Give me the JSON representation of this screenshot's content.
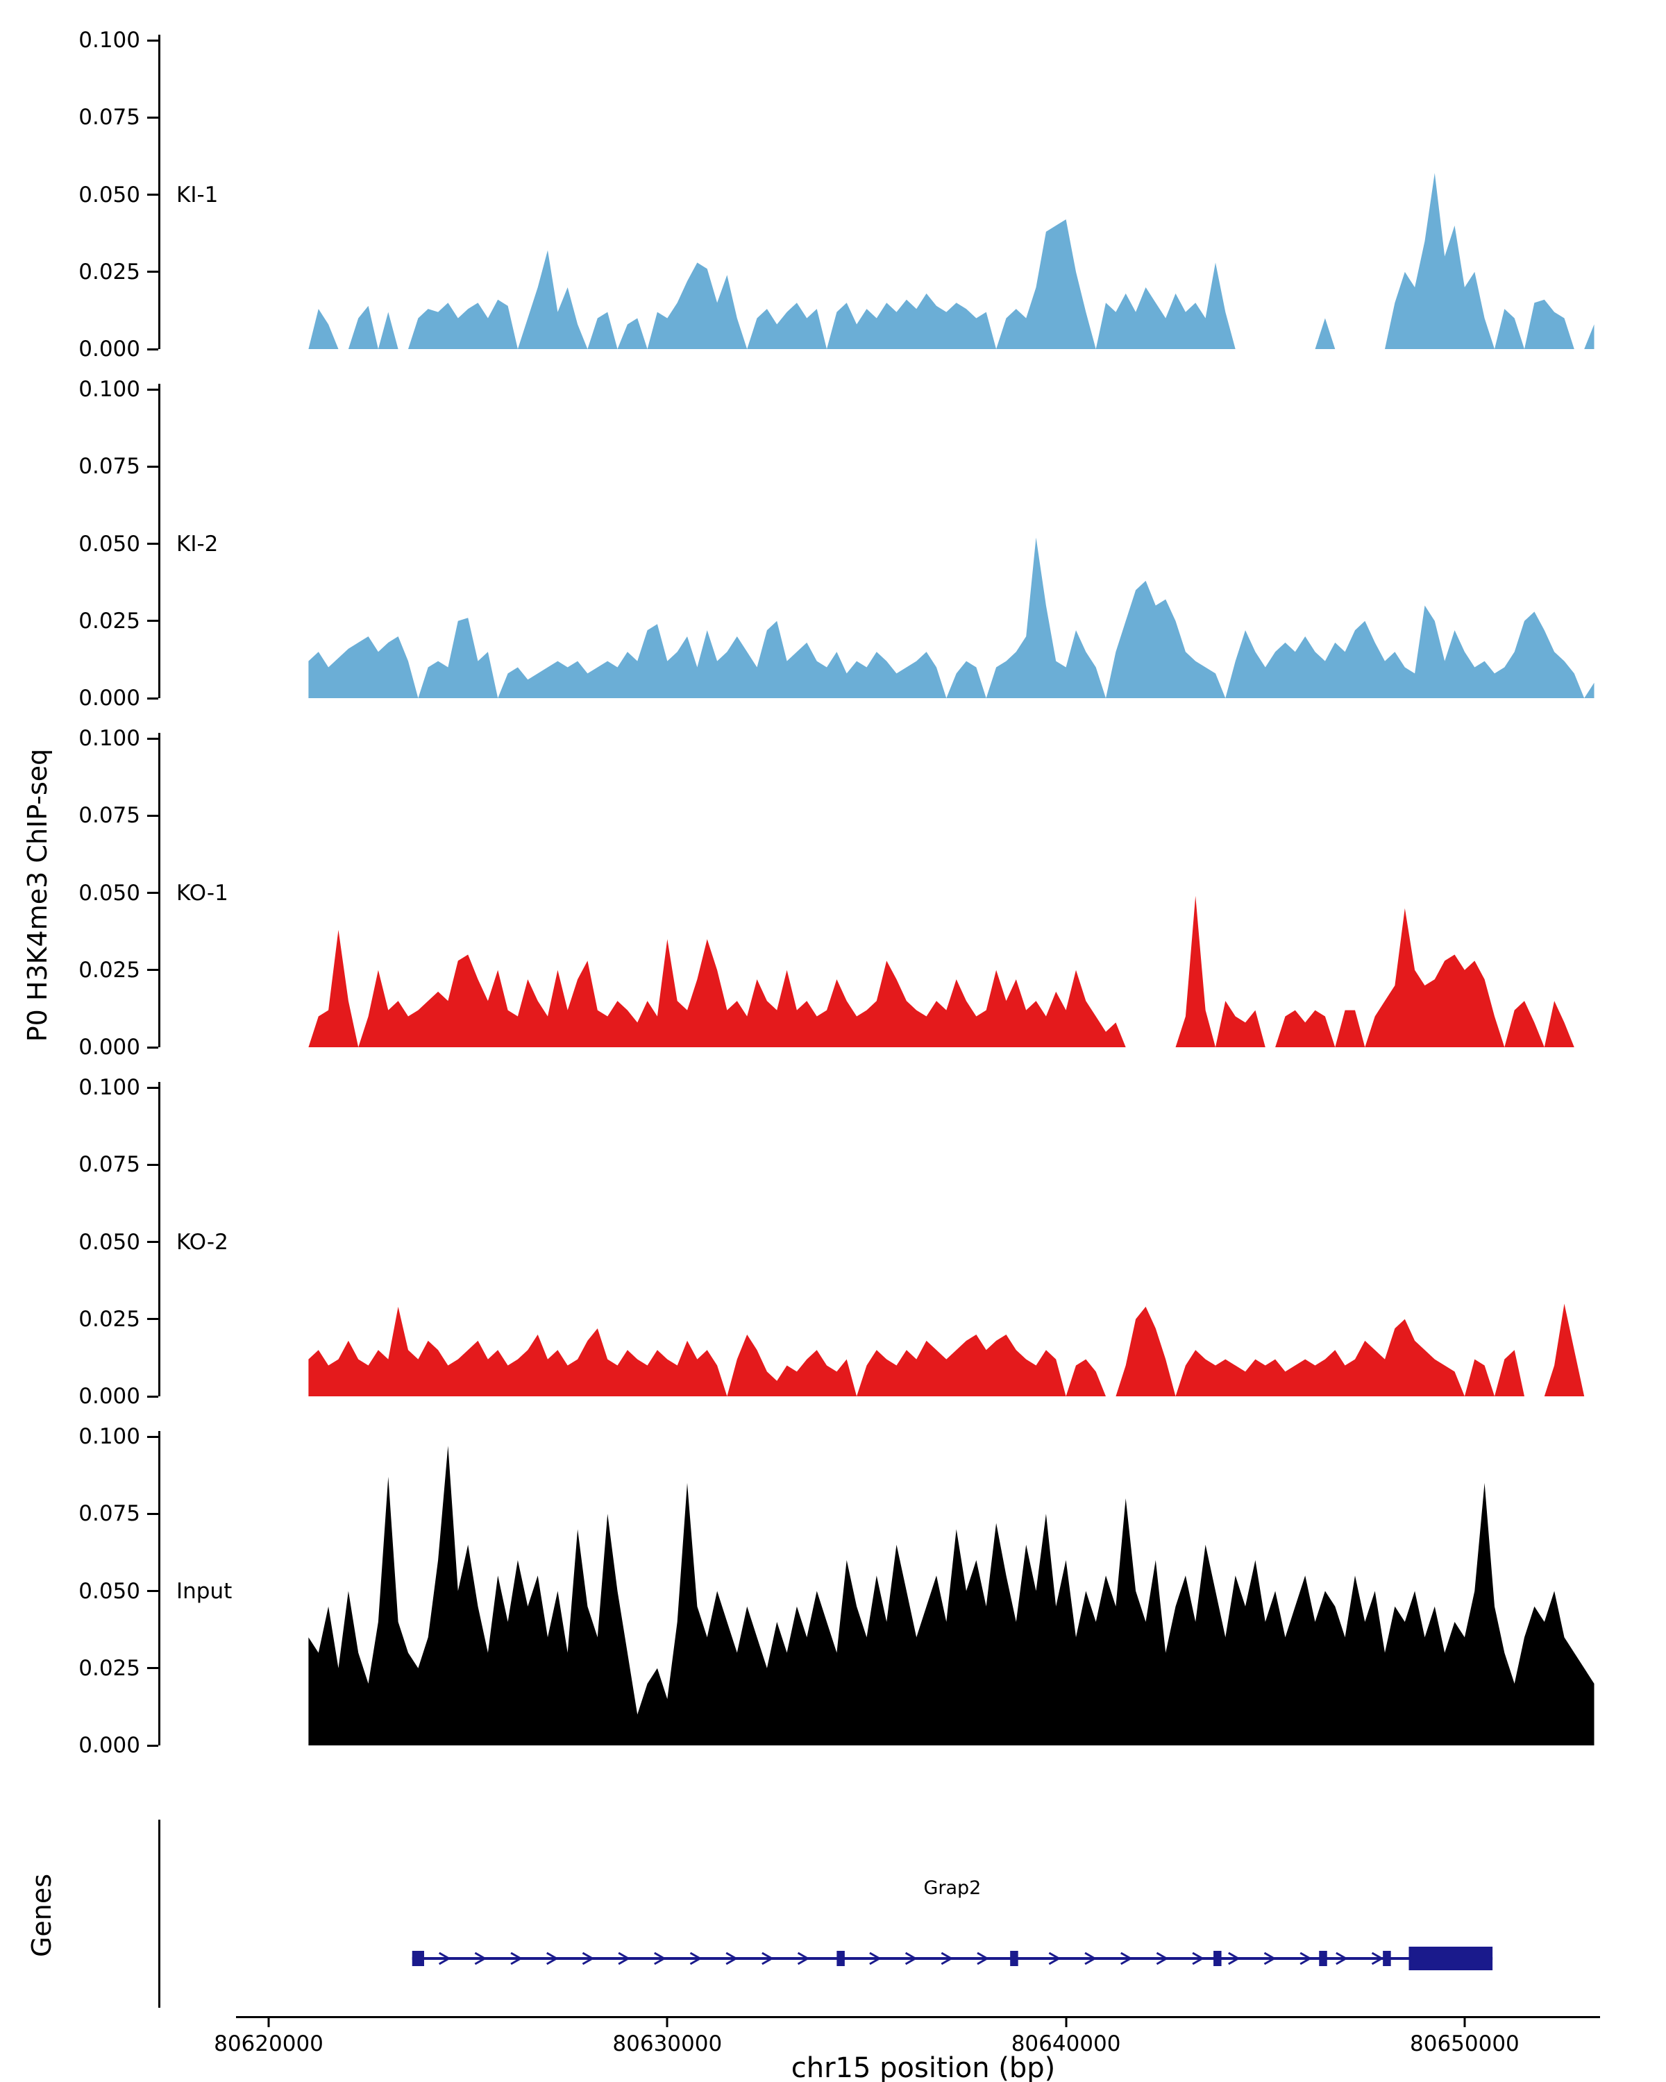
{
  "chart_data": {
    "type": "area",
    "title": "",
    "xlabel": "chr15 position (bp)",
    "ylabel": "P0 H3K4me3 ChIP-seq",
    "x_start": 80621000,
    "x_step": 250,
    "xlim": [
      80619300,
      80654500
    ],
    "ylim": [
      0,
      0.1
    ],
    "grid": false,
    "yticks": [
      {
        "value": 0.1,
        "label": "0.100"
      },
      {
        "value": 0.075,
        "label": "0.075"
      },
      {
        "value": 0.05,
        "label": "0.050"
      },
      {
        "value": 0.025,
        "label": "0.025"
      },
      {
        "value": 0.0,
        "label": "0.000"
      }
    ],
    "xticks": [
      {
        "value": 80620000,
        "label": "80620000"
      },
      {
        "value": 80630000,
        "label": "80630000"
      },
      {
        "value": 80640000,
        "label": "80640000"
      },
      {
        "value": 80650000,
        "label": "80650000"
      }
    ],
    "series": [
      {
        "name": "KI-1",
        "color": "#6BAED6",
        "values": [
          0,
          0.013,
          0.008,
          0,
          0,
          0.01,
          0.014,
          0,
          0.012,
          0,
          0,
          0.01,
          0.013,
          0.012,
          0.015,
          0.01,
          0.013,
          0.015,
          0.01,
          0.016,
          0.014,
          0,
          0.01,
          0.02,
          0.032,
          0.012,
          0.02,
          0.008,
          0,
          0.01,
          0.012,
          0,
          0.008,
          0.01,
          0,
          0.012,
          0.01,
          0.015,
          0.022,
          0.028,
          0.026,
          0.015,
          0.024,
          0.01,
          0,
          0.01,
          0.013,
          0.008,
          0.012,
          0.015,
          0.01,
          0.013,
          0,
          0.012,
          0.015,
          0.008,
          0.013,
          0.01,
          0.015,
          0.012,
          0.016,
          0.013,
          0.018,
          0.014,
          0.012,
          0.015,
          0.013,
          0.01,
          0.012,
          0,
          0.01,
          0.013,
          0.01,
          0.02,
          0.038,
          0.04,
          0.042,
          0.025,
          0.012,
          0,
          0.015,
          0.012,
          0.018,
          0.012,
          0.02,
          0.015,
          0.01,
          0.018,
          0.012,
          0.015,
          0.01,
          0.028,
          0.012,
          0,
          0,
          0,
          0,
          0,
          0,
          0,
          0,
          0,
          0.01,
          0,
          0,
          0,
          0,
          0,
          0,
          0.015,
          0.025,
          0.02,
          0.035,
          0.057,
          0.03,
          0.04,
          0.02,
          0.025,
          0.01,
          0,
          0.013,
          0.01,
          0,
          0.015,
          0.016,
          0.012,
          0.01,
          0,
          0,
          0.008
        ]
      },
      {
        "name": "KI-2",
        "color": "#6BAED6",
        "values": [
          0.012,
          0.015,
          0.01,
          0.013,
          0.016,
          0.018,
          0.02,
          0.015,
          0.018,
          0.02,
          0.012,
          0,
          0.01,
          0.012,
          0.01,
          0.025,
          0.026,
          0.012,
          0.015,
          0,
          0.008,
          0.01,
          0.006,
          0.008,
          0.01,
          0.012,
          0.01,
          0.012,
          0.008,
          0.01,
          0.012,
          0.01,
          0.015,
          0.012,
          0.022,
          0.024,
          0.012,
          0.015,
          0.02,
          0.01,
          0.022,
          0.012,
          0.015,
          0.02,
          0.015,
          0.01,
          0.022,
          0.025,
          0.012,
          0.015,
          0.018,
          0.012,
          0.01,
          0.015,
          0.008,
          0.012,
          0.01,
          0.015,
          0.012,
          0.008,
          0.01,
          0.012,
          0.015,
          0.01,
          0,
          0.008,
          0.012,
          0.01,
          0,
          0.01,
          0.012,
          0.015,
          0.02,
          0.052,
          0.03,
          0.012,
          0.01,
          0.022,
          0.015,
          0.01,
          0,
          0.015,
          0.025,
          0.035,
          0.038,
          0.03,
          0.032,
          0.025,
          0.015,
          0.012,
          0.01,
          0.008,
          0,
          0.012,
          0.022,
          0.015,
          0.01,
          0.015,
          0.018,
          0.015,
          0.02,
          0.015,
          0.012,
          0.018,
          0.015,
          0.022,
          0.025,
          0.018,
          0.012,
          0.015,
          0.01,
          0.008,
          0.03,
          0.025,
          0.012,
          0.022,
          0.015,
          0.01,
          0.012,
          0.008,
          0.01,
          0.015,
          0.025,
          0.028,
          0.022,
          0.015,
          0.012,
          0.008,
          0,
          0.005
        ]
      },
      {
        "name": "KO-1",
        "color": "#E41A1C",
        "values": [
          0,
          0.01,
          0.012,
          0.038,
          0.015,
          0,
          0.01,
          0.025,
          0.012,
          0.015,
          0.01,
          0.012,
          0.015,
          0.018,
          0.015,
          0.028,
          0.03,
          0.022,
          0.015,
          0.025,
          0.012,
          0.01,
          0.022,
          0.015,
          0.01,
          0.025,
          0.012,
          0.022,
          0.028,
          0.012,
          0.01,
          0.015,
          0.012,
          0.008,
          0.015,
          0.01,
          0.035,
          0.015,
          0.012,
          0.022,
          0.035,
          0.025,
          0.012,
          0.015,
          0.01,
          0.022,
          0.015,
          0.012,
          0.025,
          0.012,
          0.015,
          0.01,
          0.012,
          0.022,
          0.015,
          0.01,
          0.012,
          0.015,
          0.028,
          0.022,
          0.015,
          0.012,
          0.01,
          0.015,
          0.012,
          0.022,
          0.015,
          0.01,
          0.012,
          0.025,
          0.015,
          0.022,
          0.012,
          0.015,
          0.01,
          0.018,
          0.012,
          0.025,
          0.015,
          0.01,
          0.005,
          0.008,
          0,
          0,
          0,
          0,
          0,
          0,
          0.01,
          0.049,
          0.012,
          0,
          0.015,
          0.01,
          0.008,
          0.012,
          0,
          0,
          0.01,
          0.012,
          0.008,
          0.012,
          0.01,
          0,
          0.012,
          0.012,
          0,
          0.01,
          0.015,
          0.02,
          0.045,
          0.025,
          0.02,
          0.022,
          0.028,
          0.03,
          0.025,
          0.028,
          0.022,
          0.01,
          0,
          0.012,
          0.015,
          0.008,
          0,
          0.015,
          0.008,
          0,
          0,
          0
        ]
      },
      {
        "name": "KO-2",
        "color": "#E41A1C",
        "values": [
          0.012,
          0.015,
          0.01,
          0.012,
          0.018,
          0.012,
          0.01,
          0.015,
          0.012,
          0.029,
          0.015,
          0.012,
          0.018,
          0.015,
          0.01,
          0.012,
          0.015,
          0.018,
          0.012,
          0.015,
          0.01,
          0.012,
          0.015,
          0.02,
          0.012,
          0.015,
          0.01,
          0.012,
          0.018,
          0.022,
          0.012,
          0.01,
          0.015,
          0.012,
          0.01,
          0.015,
          0.012,
          0.01,
          0.018,
          0.012,
          0.015,
          0.01,
          0,
          0.012,
          0.02,
          0.015,
          0.008,
          0.005,
          0.01,
          0.008,
          0.012,
          0.015,
          0.01,
          0.008,
          0.012,
          0,
          0.01,
          0.015,
          0.012,
          0.01,
          0.015,
          0.012,
          0.018,
          0.015,
          0.012,
          0.015,
          0.018,
          0.02,
          0.015,
          0.018,
          0.02,
          0.015,
          0.012,
          0.01,
          0.015,
          0.012,
          0,
          0.01,
          0.012,
          0.008,
          0,
          0,
          0.01,
          0.025,
          0.029,
          0.022,
          0.012,
          0,
          0.01,
          0.015,
          0.012,
          0.01,
          0.012,
          0.01,
          0.008,
          0.012,
          0.01,
          0.012,
          0.008,
          0.01,
          0.012,
          0.01,
          0.012,
          0.015,
          0.01,
          0.012,
          0.018,
          0.015,
          0.012,
          0.022,
          0.025,
          0.018,
          0.015,
          0.012,
          0.01,
          0.008,
          0,
          0.012,
          0.01,
          0,
          0.012,
          0.015,
          0,
          0,
          0,
          0.01,
          0.03,
          0.015,
          0,
          0
        ]
      },
      {
        "name": "Input",
        "color": "#000000",
        "values": [
          0.035,
          0.03,
          0.045,
          0.025,
          0.05,
          0.03,
          0.02,
          0.04,
          0.087,
          0.04,
          0.03,
          0.025,
          0.035,
          0.06,
          0.097,
          0.05,
          0.065,
          0.045,
          0.03,
          0.055,
          0.04,
          0.06,
          0.045,
          0.055,
          0.035,
          0.05,
          0.03,
          0.07,
          0.045,
          0.035,
          0.075,
          0.05,
          0.03,
          0.01,
          0.02,
          0.025,
          0.015,
          0.04,
          0.085,
          0.045,
          0.035,
          0.05,
          0.04,
          0.03,
          0.045,
          0.035,
          0.025,
          0.04,
          0.03,
          0.045,
          0.035,
          0.05,
          0.04,
          0.03,
          0.06,
          0.045,
          0.035,
          0.055,
          0.04,
          0.065,
          0.05,
          0.035,
          0.045,
          0.055,
          0.04,
          0.07,
          0.05,
          0.06,
          0.045,
          0.072,
          0.055,
          0.04,
          0.065,
          0.05,
          0.075,
          0.045,
          0.06,
          0.035,
          0.05,
          0.04,
          0.055,
          0.045,
          0.08,
          0.05,
          0.04,
          0.06,
          0.03,
          0.045,
          0.055,
          0.04,
          0.065,
          0.05,
          0.035,
          0.055,
          0.045,
          0.06,
          0.04,
          0.05,
          0.035,
          0.045,
          0.055,
          0.04,
          0.05,
          0.045,
          0.035,
          0.055,
          0.04,
          0.05,
          0.03,
          0.045,
          0.04,
          0.05,
          0.035,
          0.045,
          0.03,
          0.04,
          0.035,
          0.05,
          0.085,
          0.045,
          0.03,
          0.02,
          0.035,
          0.045,
          0.04,
          0.05,
          0.035,
          0.03,
          0.025,
          0.02
        ]
      }
    ],
    "gene_track": {
      "label": "Genes",
      "gene": {
        "name": "Grap2",
        "start": 80623600,
        "end": 80650700,
        "strand": "+",
        "color": "#1A1A8C",
        "exons": [
          {
            "start": 80623600,
            "end": 80623900
          },
          {
            "start": 80634250,
            "end": 80634450
          },
          {
            "start": 80638600,
            "end": 80638800
          },
          {
            "start": 80643700,
            "end": 80643900
          },
          {
            "start": 80646350,
            "end": 80646550
          },
          {
            "start": 80647950,
            "end": 80648150
          },
          {
            "start": 80648600,
            "end": 80650700,
            "thick": true
          }
        ]
      }
    }
  }
}
